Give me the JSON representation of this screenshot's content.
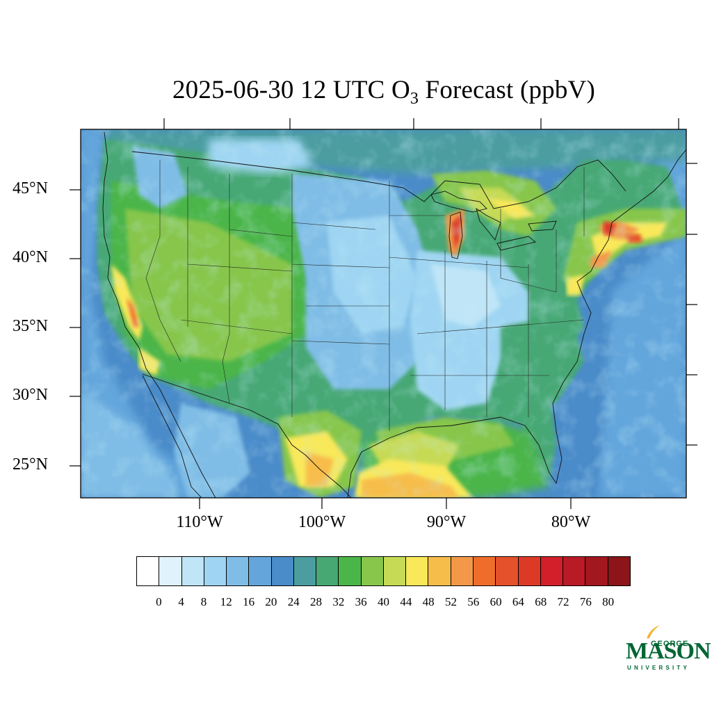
{
  "title": {
    "prefix": "2025-06-30 12 UTC O",
    "subscript": "3",
    "suffix": " Forecast (ppbV)"
  },
  "map": {
    "lat_labels": [
      "45°N",
      "40°N",
      "35°N",
      "30°N",
      "25°N"
    ],
    "lon_labels": [
      "110°W",
      "100°W",
      "90°W",
      "80°W"
    ]
  },
  "colorbar": {
    "colors": [
      "#ffffff",
      "#e0f2fb",
      "#bfe5f7",
      "#9fd5f2",
      "#80bde6",
      "#64a6dc",
      "#4a8bc9",
      "#4c9da0",
      "#47a874",
      "#4bb54a",
      "#87c64b",
      "#c7da55",
      "#f8e85a",
      "#f7bd4b",
      "#f39849",
      "#ef6d2a",
      "#e4512a",
      "#dc3a27",
      "#d21f2a",
      "#b81a26",
      "#a3171f",
      "#8b1519"
    ],
    "labels": [
      "0",
      "4",
      "8",
      "12",
      "16",
      "20",
      "24",
      "28",
      "32",
      "36",
      "40",
      "44",
      "48",
      "52",
      "56",
      "60",
      "64",
      "68",
      "72",
      "76",
      "80"
    ]
  },
  "logo": {
    "line1": "GEORGE",
    "line2": "MASON",
    "line3": "UNIVERSITY",
    "color": "#006633",
    "accent": "#f2b233"
  }
}
